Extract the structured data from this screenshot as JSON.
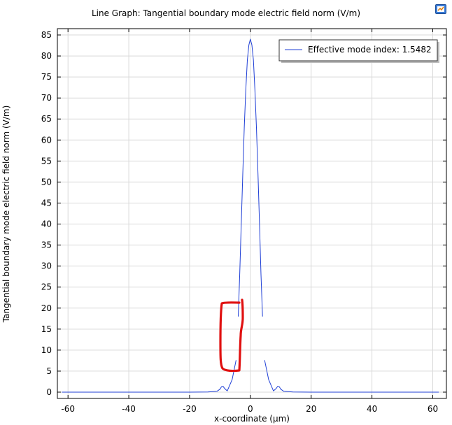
{
  "toolbar": {
    "icon": "comsol-graph-icon"
  },
  "chart_data": {
    "type": "line",
    "title": "Line Graph: Tangential boundary mode electric field norm (V/m)",
    "xlabel": "x-coordinate (µm)",
    "ylabel": "Tangential boundary mode electric field norm (V/m)",
    "xlim": [
      -63.5,
      64.5
    ],
    "ylim": [
      -1.5,
      86.5
    ],
    "x_ticks": [
      -60,
      -40,
      -20,
      0,
      20,
      40,
      60
    ],
    "y_ticks": [
      0,
      5,
      10,
      15,
      20,
      25,
      30,
      35,
      40,
      45,
      50,
      55,
      60,
      65,
      70,
      75,
      80,
      85
    ],
    "grid": true,
    "legend_position": "top-right",
    "series": [
      {
        "name": "Effective mode index: 1.5482",
        "color": "#1f3fd6",
        "segments": [
          {
            "x": [
              -62,
              -40,
              -20,
              -14,
              -11,
              -10,
              -9.5,
              -9,
              -8.5,
              -7.6,
              -6,
              -4.7
            ],
            "y": [
              0,
              0,
              0,
              0.05,
              0.2,
              0.7,
              1.3,
              1.4,
              0.9,
              0.3,
              3.0,
              7.6
            ]
          },
          {
            "x": [
              -4,
              -3.5,
              -3,
              -2.5,
              -2,
              -1.5,
              -1,
              -0.5,
              0,
              0.5,
              1,
              1.5,
              2,
              2.5,
              3,
              3.5,
              4
            ],
            "y": [
              18,
              28,
              40,
              52,
              63,
              72,
              79,
              82.6,
              84,
              82.6,
              79,
              72,
              63,
              52,
              40,
              28,
              18
            ]
          },
          {
            "x": [
              4.7,
              6,
              7.6,
              8.5,
              9,
              9.5,
              10,
              11,
              14,
              20,
              40,
              62
            ],
            "y": [
              7.6,
              3.0,
              0.3,
              0.9,
              1.4,
              1.3,
              0.7,
              0.2,
              0.05,
              0,
              0,
              0
            ]
          }
        ]
      }
    ],
    "annotation": {
      "type": "hand-drawn red loop",
      "color": "#e01010"
    }
  }
}
